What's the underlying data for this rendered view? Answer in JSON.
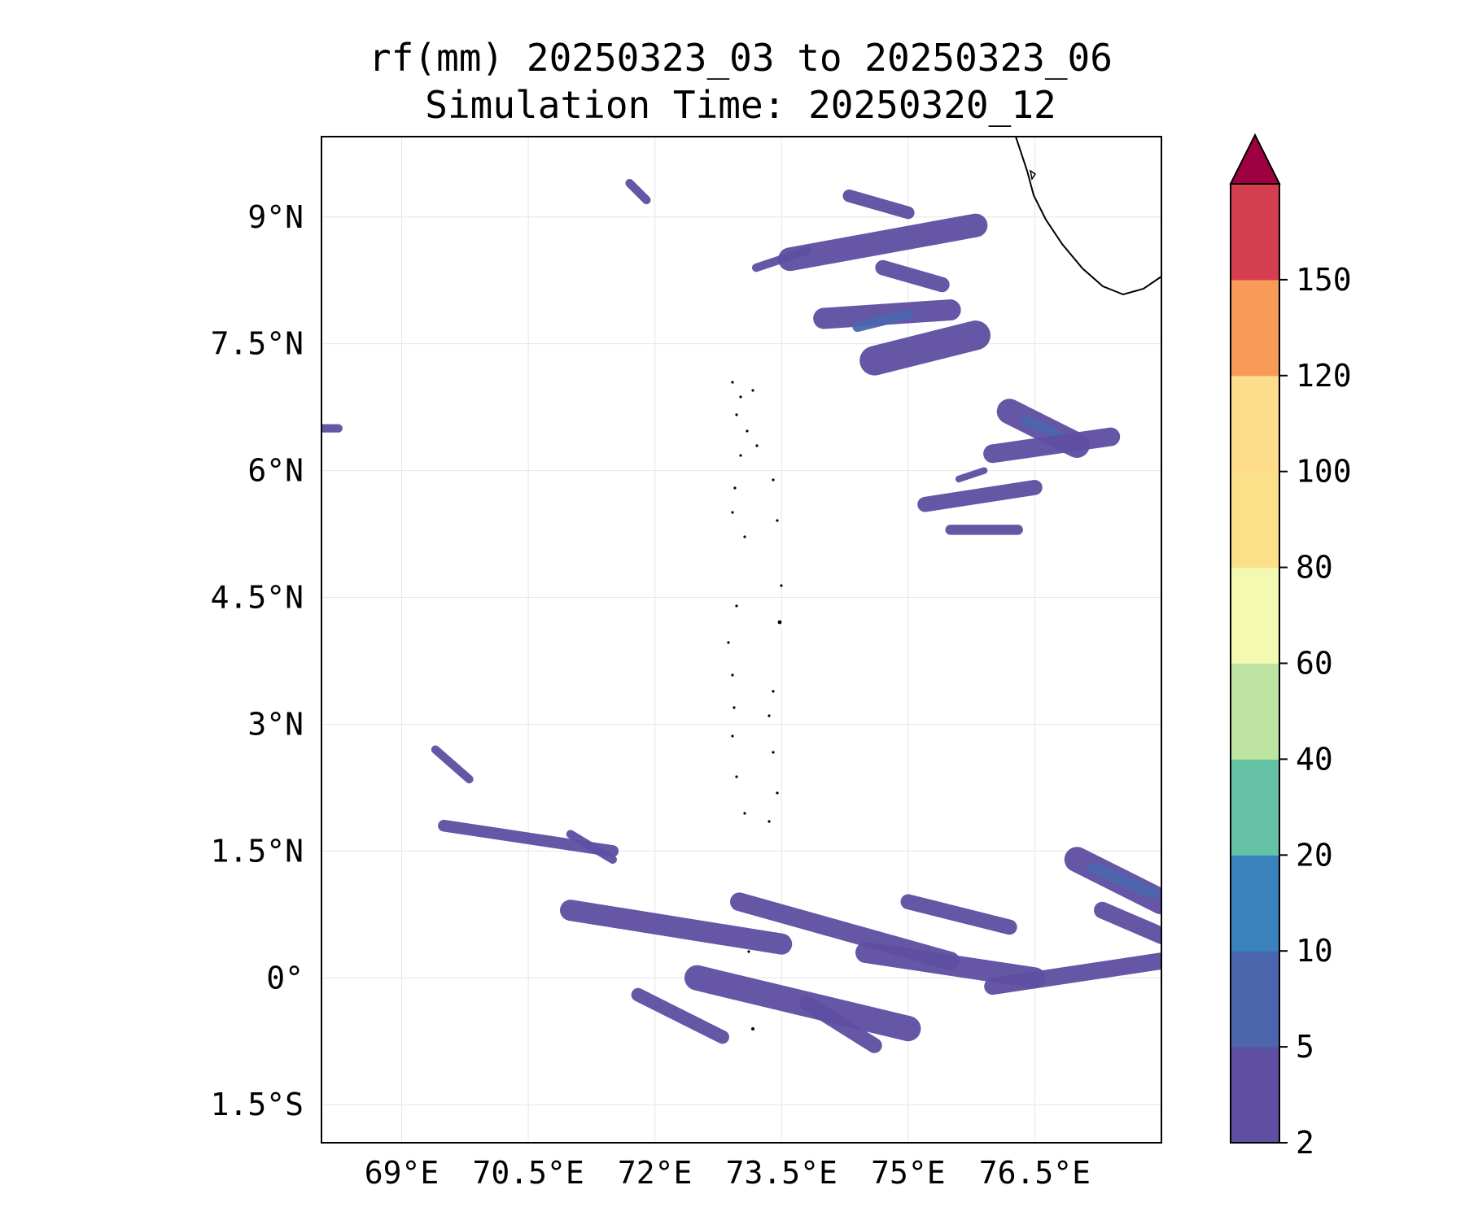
{
  "title": {
    "line1": "rf(mm) 20250323_03 to 20250323_06",
    "line2": "Simulation Time: 20250320_12"
  },
  "map": {
    "lon_range": [
      68.05,
      78.0
    ],
    "lat_range": [
      -1.95,
      9.95
    ],
    "x_ticks": [
      {
        "value": 69,
        "label": "69°E"
      },
      {
        "value": 70.5,
        "label": "70.5°E"
      },
      {
        "value": 72,
        "label": "72°E"
      },
      {
        "value": 73.5,
        "label": "73.5°E"
      },
      {
        "value": 75,
        "label": "75°E"
      },
      {
        "value": 76.5,
        "label": "76.5°E"
      }
    ],
    "y_ticks": [
      {
        "value": 9,
        "label": "9°N"
      },
      {
        "value": 7.5,
        "label": "7.5°N"
      },
      {
        "value": 6,
        "label": "6°N"
      },
      {
        "value": 4.5,
        "label": "4.5°N"
      },
      {
        "value": 3,
        "label": "3°N"
      },
      {
        "value": 1.5,
        "label": "1.5°N"
      },
      {
        "value": 0,
        "label": "0°"
      },
      {
        "value": -1.5,
        "label": "1.5°S"
      }
    ],
    "rain_bands": [
      {
        "lon1": 73.6,
        "lat1": 8.5,
        "lon2": 75.8,
        "lat2": 8.9,
        "w": 0.28,
        "level": 0
      },
      {
        "lon1": 74.0,
        "lat1": 7.8,
        "lon2": 75.5,
        "lat2": 7.9,
        "w": 0.25,
        "level": 0
      },
      {
        "lon1": 74.4,
        "lat1": 7.7,
        "lon2": 75.0,
        "lat2": 7.85,
        "w": 0.12,
        "level": 1
      },
      {
        "lon1": 74.6,
        "lat1": 7.3,
        "lon2": 75.8,
        "lat2": 7.6,
        "w": 0.35,
        "level": 0
      },
      {
        "lon1": 76.2,
        "lat1": 6.7,
        "lon2": 77.0,
        "lat2": 6.3,
        "w": 0.3,
        "level": 0
      },
      {
        "lon1": 76.4,
        "lat1": 6.6,
        "lon2": 76.8,
        "lat2": 6.4,
        "w": 0.12,
        "level": 1
      },
      {
        "lon1": 76.0,
        "lat1": 6.2,
        "lon2": 77.4,
        "lat2": 6.4,
        "w": 0.22,
        "level": 0
      },
      {
        "lon1": 74.7,
        "lat1": 8.4,
        "lon2": 75.4,
        "lat2": 8.2,
        "w": 0.18,
        "level": 0
      },
      {
        "lon1": 74.3,
        "lat1": 9.25,
        "lon2": 75.0,
        "lat2": 9.05,
        "w": 0.15,
        "level": 0
      },
      {
        "lon1": 75.2,
        "lat1": 5.6,
        "lon2": 76.5,
        "lat2": 5.8,
        "w": 0.18,
        "level": 0
      },
      {
        "lon1": 75.5,
        "lat1": 5.3,
        "lon2": 76.3,
        "lat2": 5.3,
        "w": 0.12,
        "level": 0
      },
      {
        "lon1": 69.5,
        "lat1": 1.8,
        "lon2": 71.5,
        "lat2": 1.5,
        "w": 0.14,
        "level": 0
      },
      {
        "lon1": 71.0,
        "lat1": 0.8,
        "lon2": 73.5,
        "lat2": 0.4,
        "w": 0.25,
        "level": 0
      },
      {
        "lon1": 72.5,
        "lat1": 0.0,
        "lon2": 75.0,
        "lat2": -0.6,
        "w": 0.3,
        "level": 0
      },
      {
        "lon1": 73.0,
        "lat1": 0.9,
        "lon2": 75.5,
        "lat2": 0.2,
        "w": 0.22,
        "level": 0
      },
      {
        "lon1": 74.5,
        "lat1": 0.3,
        "lon2": 76.5,
        "lat2": 0.0,
        "w": 0.25,
        "level": 0
      },
      {
        "lon1": 75.0,
        "lat1": 0.9,
        "lon2": 76.2,
        "lat2": 0.6,
        "w": 0.18,
        "level": 0
      },
      {
        "lon1": 76.0,
        "lat1": -0.1,
        "lon2": 78.0,
        "lat2": 0.2,
        "w": 0.2,
        "level": 0
      },
      {
        "lon1": 77.0,
        "lat1": 1.4,
        "lon2": 78.0,
        "lat2": 0.9,
        "w": 0.3,
        "level": 0
      },
      {
        "lon1": 77.2,
        "lat1": 1.3,
        "lon2": 77.9,
        "lat2": 1.0,
        "w": 0.14,
        "level": 1
      },
      {
        "lon1": 77.3,
        "lat1": 0.8,
        "lon2": 78.0,
        "lat2": 0.5,
        "w": 0.2,
        "level": 0
      },
      {
        "lon1": 71.8,
        "lat1": -0.2,
        "lon2": 72.8,
        "lat2": -0.7,
        "w": 0.16,
        "level": 0
      },
      {
        "lon1": 73.8,
        "lat1": -0.3,
        "lon2": 74.6,
        "lat2": -0.8,
        "w": 0.18,
        "level": 0
      },
      {
        "lon1": 68.05,
        "lat1": 6.5,
        "lon2": 68.25,
        "lat2": 6.5,
        "w": 0.1,
        "level": 0
      },
      {
        "lon1": 69.4,
        "lat1": 2.7,
        "lon2": 69.8,
        "lat2": 2.35,
        "w": 0.1,
        "level": 0
      },
      {
        "lon1": 71.0,
        "lat1": 1.7,
        "lon2": 71.5,
        "lat2": 1.4,
        "w": 0.1,
        "level": 0
      },
      {
        "lon1": 73.2,
        "lat1": 8.4,
        "lon2": 73.8,
        "lat2": 8.6,
        "w": 0.1,
        "level": 0
      },
      {
        "lon1": 71.7,
        "lat1": 9.4,
        "lon2": 71.9,
        "lat2": 9.2,
        "w": 0.1,
        "level": 0
      },
      {
        "lon1": 75.6,
        "lat1": 5.9,
        "lon2": 75.9,
        "lat2": 6.0,
        "w": 0.08,
        "level": 0
      }
    ]
  },
  "colorbar": {
    "levels": [
      2,
      5,
      10,
      20,
      40,
      60,
      80,
      100,
      120,
      150
    ],
    "colors": [
      "#5e4fa2",
      "#4b66ad",
      "#3a82bc",
      "#66c2a5",
      "#bce4a0",
      "#f3f9b0",
      "#fbe08a",
      "#fddc8c",
      "#f99b58",
      "#d53e4f"
    ],
    "extend_color": "#9e0142"
  }
}
